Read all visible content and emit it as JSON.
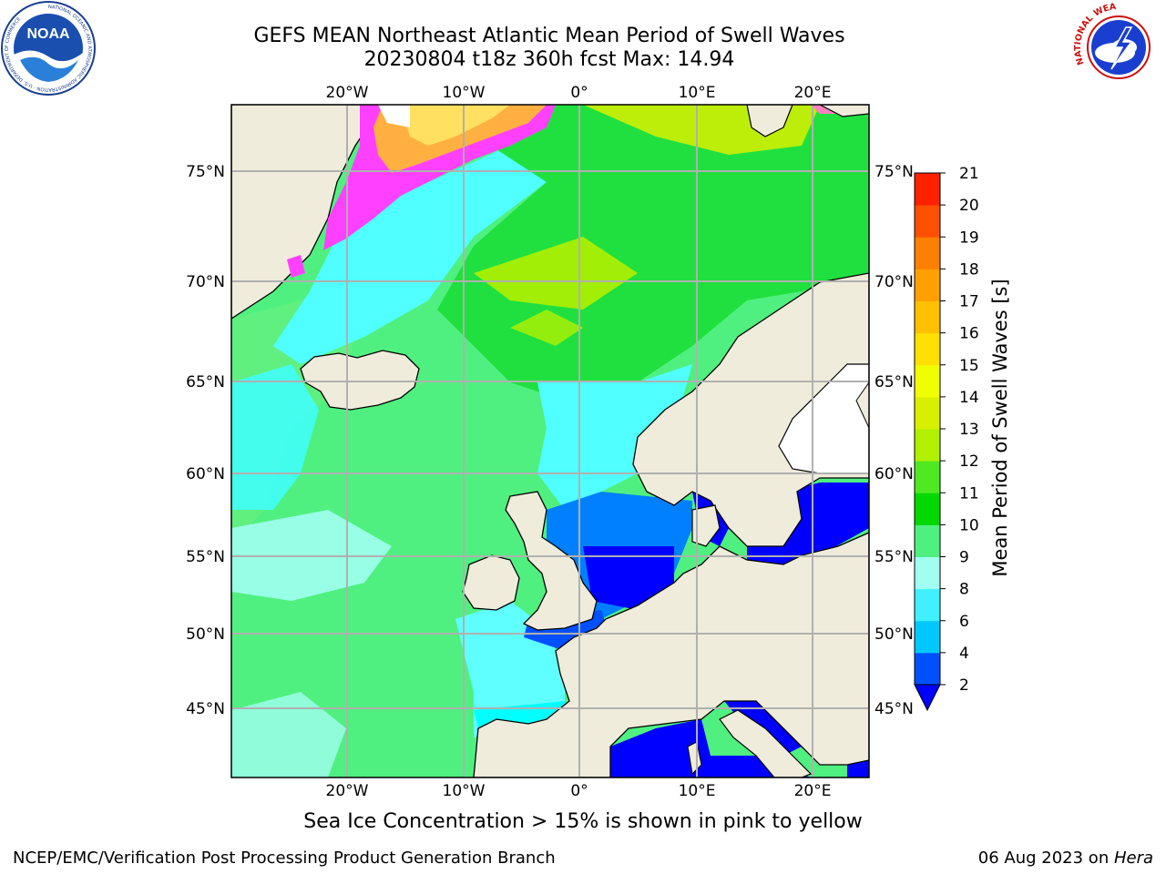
{
  "title": {
    "line1": "GEFS MEAN Northeast Atlantic Mean Period of Swell Waves",
    "line2": "20230804 t18z 360h fcst   Max: 14.94"
  },
  "logos": {
    "left": {
      "name": "noaa-logo",
      "text": "NOAA",
      "ring_text": "NATIONAL OCEANIC AND ATMOSPHERIC ADMINISTRATION · U.S. DEPARTMENT OF COMMERCE"
    },
    "right": {
      "name": "nws-logo",
      "ring_text": "NATIONAL WEATHER SERVICE"
    }
  },
  "map": {
    "lon_labels": [
      "20°W",
      "10°W",
      "0°",
      "10°E",
      "20°E"
    ],
    "lat_labels": [
      "75°N",
      "70°N",
      "65°N",
      "60°N",
      "55°N",
      "50°N",
      "45°N"
    ],
    "land_color": "#efecdc",
    "grid_color": "#b0b0b0",
    "sea_ice_colors": [
      "#ff40ff",
      "#ff80c0",
      "#ffb040",
      "#ffe060"
    ]
  },
  "colorbar": {
    "label": "Mean Period of Swell Waves [s]",
    "ticks": [
      "2",
      "4",
      "6",
      "8",
      "9",
      "10",
      "11",
      "12",
      "13",
      "14",
      "15",
      "16",
      "17",
      "18",
      "19",
      "20",
      "21"
    ],
    "colors": [
      "#0050ff",
      "#00c8ff",
      "#40f0ff",
      "#a0fff0",
      "#50f080",
      "#00d800",
      "#50e820",
      "#b0f000",
      "#d8f000",
      "#f0ff00",
      "#ffe000",
      "#ffc000",
      "#ffa000",
      "#ff8000",
      "#ff5000",
      "#ff2000",
      "#ff0000"
    ],
    "under_color": "#0000ff"
  },
  "caption": "Sea Ice Concentration > 15% is shown in pink to yellow",
  "footer": {
    "left": "NCEP/EMC/Verification Post Processing Product Generation Branch",
    "right_date": "06 Aug 2023 on ",
    "right_host": "Hera"
  }
}
